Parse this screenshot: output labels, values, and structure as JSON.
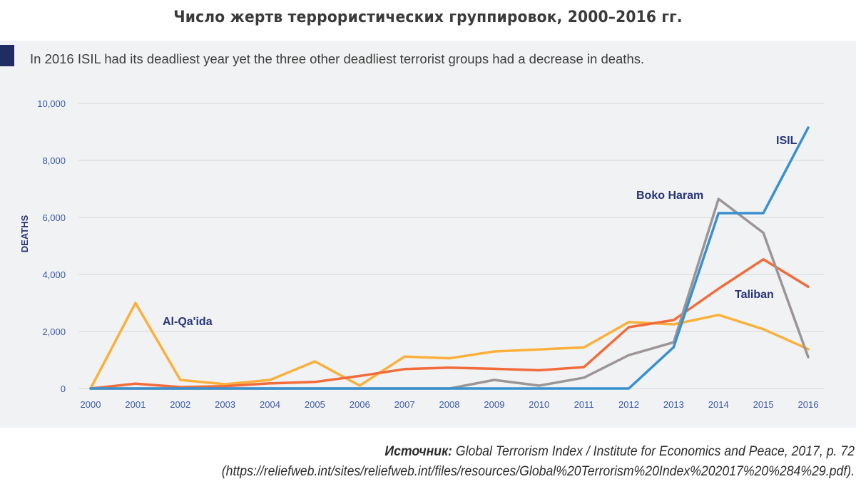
{
  "page": {
    "title": "Число жертв террористических группировок, 2000–2016  гг.",
    "source_label": "Источник:",
    "source_text": " Global Terrorism Index / Institute for Economics and Peace, 2017, р. 72",
    "source_url": "(https://reliefweb.int/sites/reliefweb.int/files/resources/Global%20Terrorism%20Index%202017%20%284%29.pdf)."
  },
  "chart_data": {
    "type": "line",
    "subtitle": "In 2016 ISIL had its deadliest year yet the three other deadliest terrorist groups had a decrease in deaths.",
    "ylabel": "DEATHS",
    "xlabel": "",
    "ylim": [
      0,
      10000
    ],
    "yticks": [
      0,
      2000,
      4000,
      6000,
      8000,
      10000
    ],
    "ytick_labels": [
      "0",
      "2,000",
      "4,000",
      "6,000",
      "8,000",
      "10,000"
    ],
    "x": [
      "2000",
      "2001",
      "2002",
      "2003",
      "2004",
      "2005",
      "2006",
      "2007",
      "2008",
      "2009",
      "2010",
      "2011",
      "2012",
      "2013",
      "2014",
      "2015",
      "2016"
    ],
    "grid": true,
    "series": [
      {
        "name": "Al-Qa'ida",
        "color": "#fbb03b",
        "values": [
          0,
          3000,
          300,
          150,
          300,
          950,
          100,
          1120,
          1060,
          1300,
          1370,
          1440,
          2330,
          2250,
          2580,
          2080,
          1380
        ]
      },
      {
        "name": "Taliban",
        "color": "#f26b3a",
        "values": [
          0,
          170,
          50,
          80,
          180,
          230,
          440,
          680,
          730,
          690,
          640,
          750,
          2150,
          2400,
          3500,
          4530,
          3570
        ]
      },
      {
        "name": "Boko Haram",
        "color": "#9b9596",
        "values": [
          0,
          0,
          0,
          0,
          0,
          0,
          0,
          0,
          0,
          300,
          100,
          380,
          1170,
          1620,
          6650,
          5460,
          1100
        ]
      },
      {
        "name": "ISIL",
        "color": "#3990cf",
        "values": [
          0,
          0,
          0,
          0,
          0,
          0,
          0,
          0,
          0,
          0,
          0,
          0,
          0,
          1450,
          6150,
          6150,
          9150
        ]
      }
    ],
    "series_label_color": "#26347a"
  }
}
